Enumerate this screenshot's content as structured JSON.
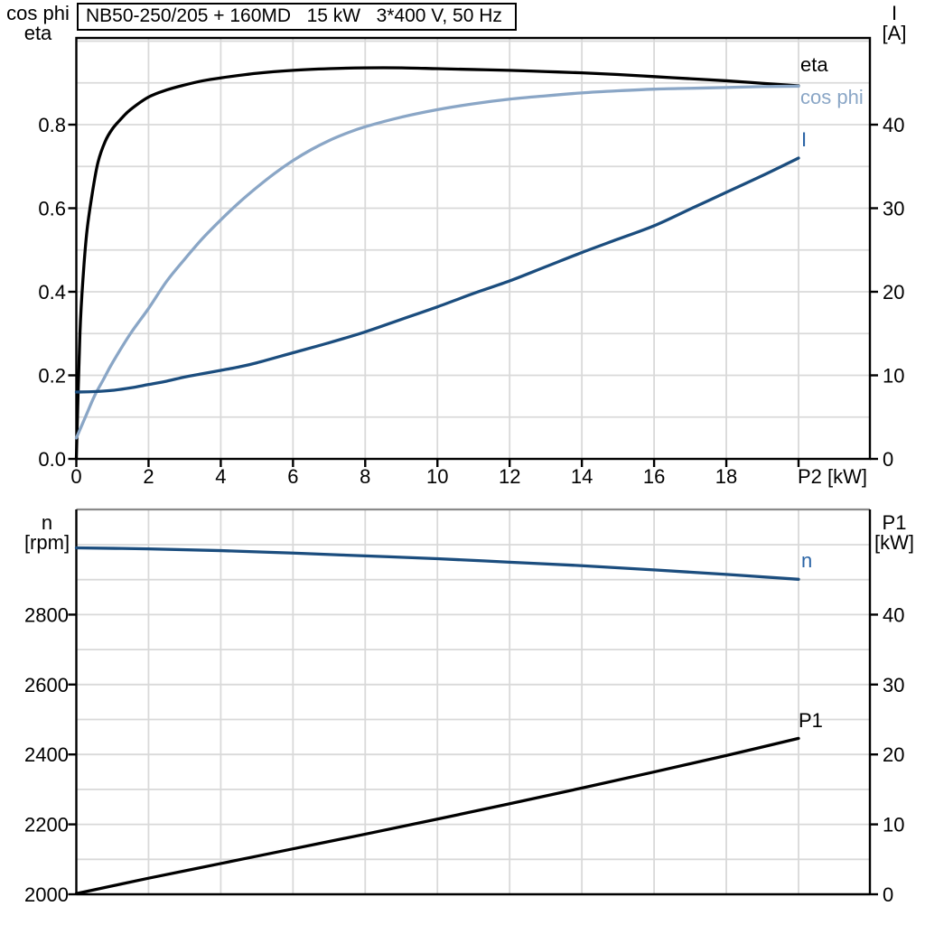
{
  "colors": {
    "black_curves": "#000000",
    "cos_phi_light_blue": "#8aa6c6",
    "current_dark_blue": "#1b4d7e",
    "curve_label_blue": "#2a64a5",
    "grid": "#d9d9d9",
    "axis": "#000000",
    "bottom_frame_top_gray": "#8a8a8a",
    "background": "#ffffff"
  },
  "axis_labels": {
    "top_left_1": "cos phi",
    "top_left_2": "eta",
    "top_right_1": "I",
    "top_right_2": "[A]",
    "bottom_left_1": "n",
    "bottom_left_2": "[rpm]",
    "bottom_right_1": "P1",
    "bottom_right_2": "[kW]"
  },
  "chart_data": [
    {
      "id": "motor-efficiency-chart",
      "type": "line",
      "title": "NB50-250/205 + 160MD   15 kW   3*400 V, 50 Hz",
      "xlabel": "P2 [kW]",
      "ylabel_left": "cos phi / eta",
      "ylabel_right": "I [A]",
      "xlim": [
        0,
        22
      ],
      "ylim_left": [
        0,
        1.0
      ],
      "ylim_right": [
        0,
        50
      ],
      "grid": true,
      "xticks": [
        0,
        2,
        4,
        6,
        8,
        10,
        12,
        14,
        16,
        18
      ],
      "yticks_left": [
        "0.0",
        "0.2",
        "0.4",
        "0.6",
        "0.8"
      ],
      "yticks_left_values": [
        0,
        0.2,
        0.4,
        0.6,
        0.8
      ],
      "yticks_right": [
        "0",
        "10",
        "20",
        "30",
        "40"
      ],
      "yticks_right_values": [
        0,
        10,
        20,
        30,
        40
      ],
      "series": [
        {
          "name": "eta",
          "axis": "left",
          "color": "#000000",
          "x": [
            0,
            0.1,
            0.2,
            0.3,
            0.45,
            0.6,
            0.8,
            1,
            1.25,
            1.5,
            2,
            2.5,
            3,
            3.5,
            4,
            5,
            6,
            7,
            8,
            9,
            10,
            11,
            12,
            13,
            14,
            15,
            16,
            17,
            18,
            19,
            20
          ],
          "y": [
            0,
            0.3,
            0.45,
            0.55,
            0.64,
            0.71,
            0.76,
            0.79,
            0.815,
            0.836,
            0.866,
            0.883,
            0.895,
            0.905,
            0.912,
            0.923,
            0.93,
            0.934,
            0.936,
            0.936,
            0.934,
            0.932,
            0.93,
            0.927,
            0.924,
            0.92,
            0.915,
            0.91,
            0.905,
            0.899,
            0.893
          ]
        },
        {
          "name": "cos phi",
          "axis": "left",
          "color": "#8aa6c6",
          "x": [
            0,
            0.25,
            0.5,
            0.75,
            1,
            1.5,
            2,
            2.5,
            3,
            3.5,
            4,
            4.5,
            5,
            5.5,
            6,
            6.5,
            7,
            7.5,
            8,
            9,
            10,
            11,
            12,
            13,
            14,
            15,
            16,
            17,
            18,
            19,
            20
          ],
          "y": [
            0.05,
            0.1,
            0.15,
            0.19,
            0.23,
            0.3,
            0.36,
            0.425,
            0.478,
            0.528,
            0.572,
            0.613,
            0.65,
            0.684,
            0.714,
            0.74,
            0.762,
            0.78,
            0.795,
            0.818,
            0.836,
            0.85,
            0.861,
            0.869,
            0.876,
            0.881,
            0.885,
            0.887,
            0.889,
            0.891,
            0.892
          ]
        },
        {
          "name": "I",
          "axis": "right",
          "color": "#1b4d7e",
          "x": [
            0,
            0.5,
            1,
            1.5,
            2,
            2.5,
            3,
            3.5,
            4,
            4.5,
            5,
            6,
            7,
            8,
            9,
            10,
            11,
            12,
            13,
            14,
            15,
            16,
            17,
            18,
            19,
            20
          ],
          "y": [
            8.0,
            8.05,
            8.2,
            8.5,
            8.9,
            9.3,
            9.8,
            10.2,
            10.6,
            11.0,
            11.5,
            12.7,
            13.9,
            15.2,
            16.7,
            18.2,
            19.8,
            21.3,
            23.0,
            24.7,
            26.3,
            27.9,
            29.9,
            31.9,
            33.9,
            36.0
          ]
        }
      ]
    },
    {
      "id": "speed-power-chart",
      "type": "line",
      "xlabel": "",
      "ylabel_left": "n [rpm]",
      "ylabel_right": "P1 [kW]",
      "xlim": [
        0,
        22
      ],
      "ylim_left": [
        2000,
        3090
      ],
      "ylim_right": [
        0,
        54.5
      ],
      "grid": true,
      "yticks_left": [
        "2000",
        "2200",
        "2400",
        "2600",
        "2800"
      ],
      "yticks_left_values": [
        2000,
        2200,
        2400,
        2600,
        2800
      ],
      "yticks_right": [
        "0",
        "10",
        "20",
        "30",
        "40"
      ],
      "yticks_right_values": [
        0,
        10,
        20,
        30,
        40
      ],
      "series": [
        {
          "name": "n",
          "axis": "left",
          "color": "#1b4d7e",
          "x": [
            0,
            2,
            4,
            6,
            8,
            10,
            12,
            14,
            16,
            18,
            20
          ],
          "y": [
            2991,
            2988,
            2983,
            2976,
            2968,
            2960,
            2950,
            2940,
            2928,
            2915,
            2901
          ]
        },
        {
          "name": "P1",
          "axis": "right",
          "color": "#000000",
          "x": [
            0,
            2,
            4,
            6,
            8,
            10,
            12,
            14,
            16,
            18,
            20
          ],
          "y": [
            0.1,
            2.3,
            4.4,
            6.5,
            8.6,
            10.75,
            12.95,
            15.2,
            17.5,
            19.85,
            22.3
          ]
        }
      ]
    }
  ]
}
